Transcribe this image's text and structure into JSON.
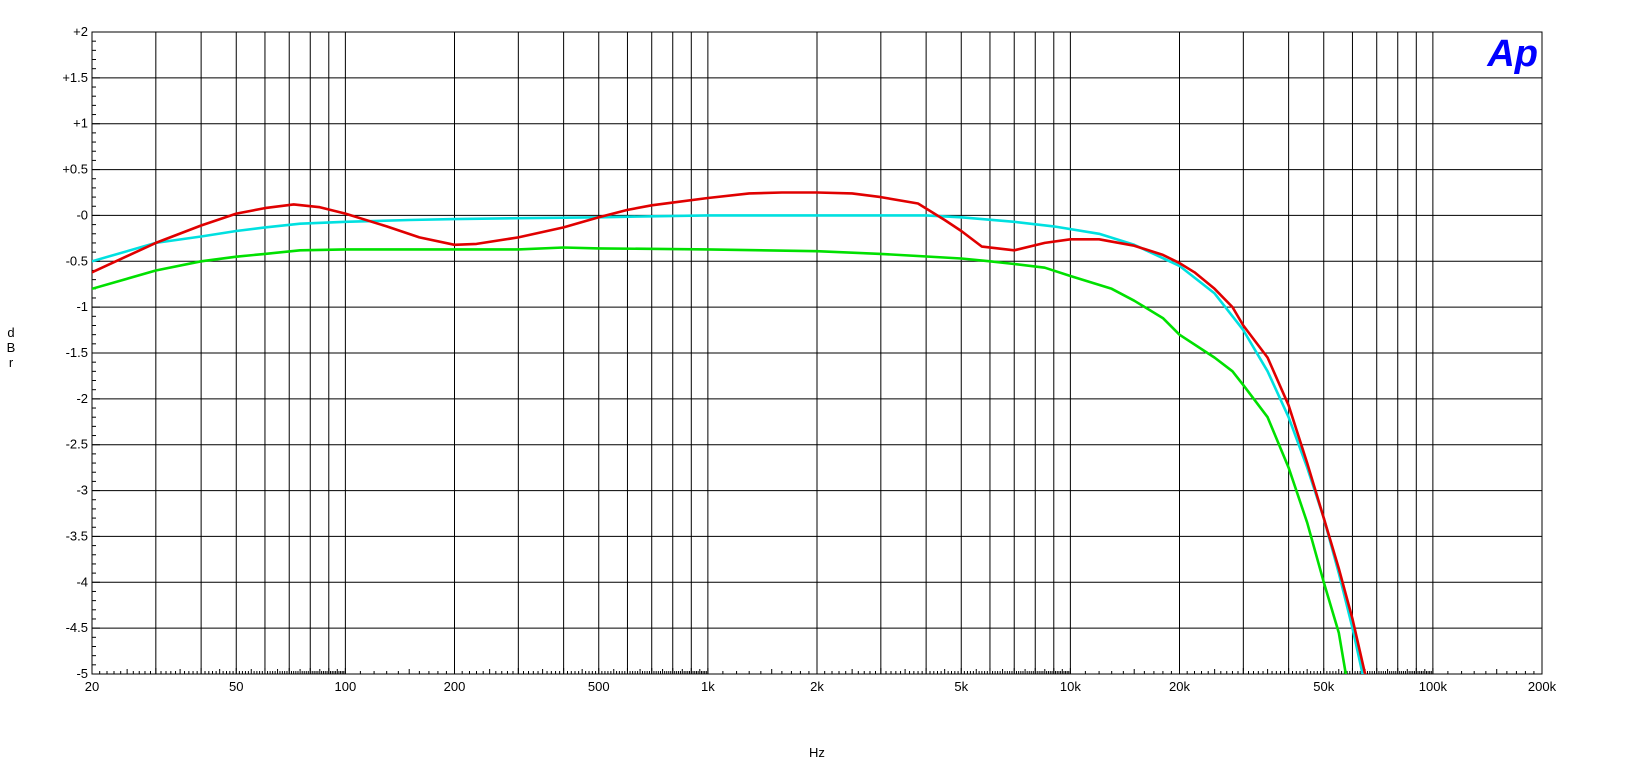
{
  "chart_data": {
    "type": "line",
    "title": "",
    "xlabel": "Hz",
    "ylabel": "dBr",
    "ylabel_chars": [
      "d",
      "B",
      "r"
    ],
    "x_scale": "log",
    "xlim": [
      20,
      200000
    ],
    "ylim": [
      -5,
      2
    ],
    "grid": true,
    "legend": "none",
    "logo": "Ap",
    "x_ticks": [
      {
        "value": 20,
        "label": "20"
      },
      {
        "value": 50,
        "label": "50"
      },
      {
        "value": 100,
        "label": "100"
      },
      {
        "value": 200,
        "label": "200"
      },
      {
        "value": 500,
        "label": "500"
      },
      {
        "value": 1000,
        "label": "1k"
      },
      {
        "value": 2000,
        "label": "2k"
      },
      {
        "value": 5000,
        "label": "5k"
      },
      {
        "value": 10000,
        "label": "10k"
      },
      {
        "value": 20000,
        "label": "20k"
      },
      {
        "value": 50000,
        "label": "50k"
      },
      {
        "value": 100000,
        "label": "100k"
      },
      {
        "value": 200000,
        "label": "200k"
      }
    ],
    "y_ticks": [
      {
        "value": 2,
        "label": "+2"
      },
      {
        "value": 1.5,
        "label": "+1.5"
      },
      {
        "value": 1,
        "label": "+1"
      },
      {
        "value": 0.5,
        "label": "+0.5"
      },
      {
        "value": 0,
        "label": "-0"
      },
      {
        "value": -0.5,
        "label": "-0.5"
      },
      {
        "value": -1,
        "label": "-1"
      },
      {
        "value": -1.5,
        "label": "-1.5"
      },
      {
        "value": -2,
        "label": "-2"
      },
      {
        "value": -2.5,
        "label": "-2.5"
      },
      {
        "value": -3,
        "label": "-3"
      },
      {
        "value": -3.5,
        "label": "-3.5"
      },
      {
        "value": -4,
        "label": "-4"
      },
      {
        "value": -4.5,
        "label": "-4.5"
      },
      {
        "value": -5,
        "label": "-5"
      }
    ],
    "series": [
      {
        "color": "#00e0e0",
        "points": [
          [
            20,
            -0.5
          ],
          [
            30,
            -0.3
          ],
          [
            40,
            -0.23
          ],
          [
            50,
            -0.17
          ],
          [
            60,
            -0.13
          ],
          [
            75,
            -0.09
          ],
          [
            100,
            -0.07
          ],
          [
            150,
            -0.05
          ],
          [
            200,
            -0.04
          ],
          [
            300,
            -0.03
          ],
          [
            500,
            -0.02
          ],
          [
            700,
            -0.01
          ],
          [
            1000,
            0
          ],
          [
            2000,
            0
          ],
          [
            3000,
            0
          ],
          [
            4000,
            0
          ],
          [
            5000,
            -0.02
          ],
          [
            7000,
            -0.07
          ],
          [
            9000,
            -0.12
          ],
          [
            12000,
            -0.2
          ],
          [
            15000,
            -0.32
          ],
          [
            20000,
            -0.55
          ],
          [
            25000,
            -0.85
          ],
          [
            30000,
            -1.25
          ],
          [
            35000,
            -1.7
          ],
          [
            40000,
            -2.2
          ],
          [
            45000,
            -2.75
          ],
          [
            50000,
            -3.3
          ],
          [
            55000,
            -3.9
          ],
          [
            60000,
            -4.5
          ],
          [
            64000,
            -5.0
          ]
        ]
      },
      {
        "color": "#00e000",
        "points": [
          [
            20,
            -0.8
          ],
          [
            30,
            -0.6
          ],
          [
            40,
            -0.5
          ],
          [
            50,
            -0.45
          ],
          [
            60,
            -0.42
          ],
          [
            75,
            -0.38
          ],
          [
            100,
            -0.37
          ],
          [
            200,
            -0.37
          ],
          [
            300,
            -0.37
          ],
          [
            400,
            -0.35
          ],
          [
            500,
            -0.36
          ],
          [
            1000,
            -0.37
          ],
          [
            2000,
            -0.39
          ],
          [
            3000,
            -0.42
          ],
          [
            5000,
            -0.47
          ],
          [
            6000,
            -0.5
          ],
          [
            7000,
            -0.53
          ],
          [
            8500,
            -0.57
          ],
          [
            10000,
            -0.66
          ],
          [
            13000,
            -0.8
          ],
          [
            15000,
            -0.93
          ],
          [
            18000,
            -1.12
          ],
          [
            20000,
            -1.3
          ],
          [
            25000,
            -1.55
          ],
          [
            28000,
            -1.7
          ],
          [
            30000,
            -1.85
          ],
          [
            35000,
            -2.2
          ],
          [
            40000,
            -2.75
          ],
          [
            45000,
            -3.35
          ],
          [
            50000,
            -4.0
          ],
          [
            55000,
            -4.55
          ],
          [
            57500,
            -5.0
          ]
        ]
      },
      {
        "color": "#e00000",
        "points": [
          [
            20,
            -0.62
          ],
          [
            30,
            -0.3
          ],
          [
            40,
            -0.11
          ],
          [
            50,
            0.02
          ],
          [
            60,
            0.08
          ],
          [
            72,
            0.12
          ],
          [
            85,
            0.09
          ],
          [
            100,
            0.02
          ],
          [
            130,
            -0.12
          ],
          [
            160,
            -0.24
          ],
          [
            200,
            -0.32
          ],
          [
            230,
            -0.31
          ],
          [
            300,
            -0.24
          ],
          [
            400,
            -0.13
          ],
          [
            500,
            -0.02
          ],
          [
            600,
            0.06
          ],
          [
            700,
            0.11
          ],
          [
            800,
            0.14
          ],
          [
            1000,
            0.19
          ],
          [
            1300,
            0.24
          ],
          [
            1600,
            0.25
          ],
          [
            2000,
            0.25
          ],
          [
            2500,
            0.24
          ],
          [
            3000,
            0.2
          ],
          [
            3800,
            0.13
          ],
          [
            4500,
            -0.05
          ],
          [
            5000,
            -0.17
          ],
          [
            5700,
            -0.34
          ],
          [
            7000,
            -0.38
          ],
          [
            8500,
            -0.3
          ],
          [
            10000,
            -0.26
          ],
          [
            12000,
            -0.26
          ],
          [
            15000,
            -0.33
          ],
          [
            18000,
            -0.43
          ],
          [
            20000,
            -0.52
          ],
          [
            22000,
            -0.62
          ],
          [
            25000,
            -0.8
          ],
          [
            28000,
            -1.0
          ],
          [
            30000,
            -1.2
          ],
          [
            35000,
            -1.55
          ],
          [
            40000,
            -2.07
          ],
          [
            45000,
            -2.7
          ],
          [
            50000,
            -3.3
          ],
          [
            55000,
            -3.85
          ],
          [
            60000,
            -4.4
          ],
          [
            65000,
            -5.0
          ]
        ]
      }
    ]
  }
}
